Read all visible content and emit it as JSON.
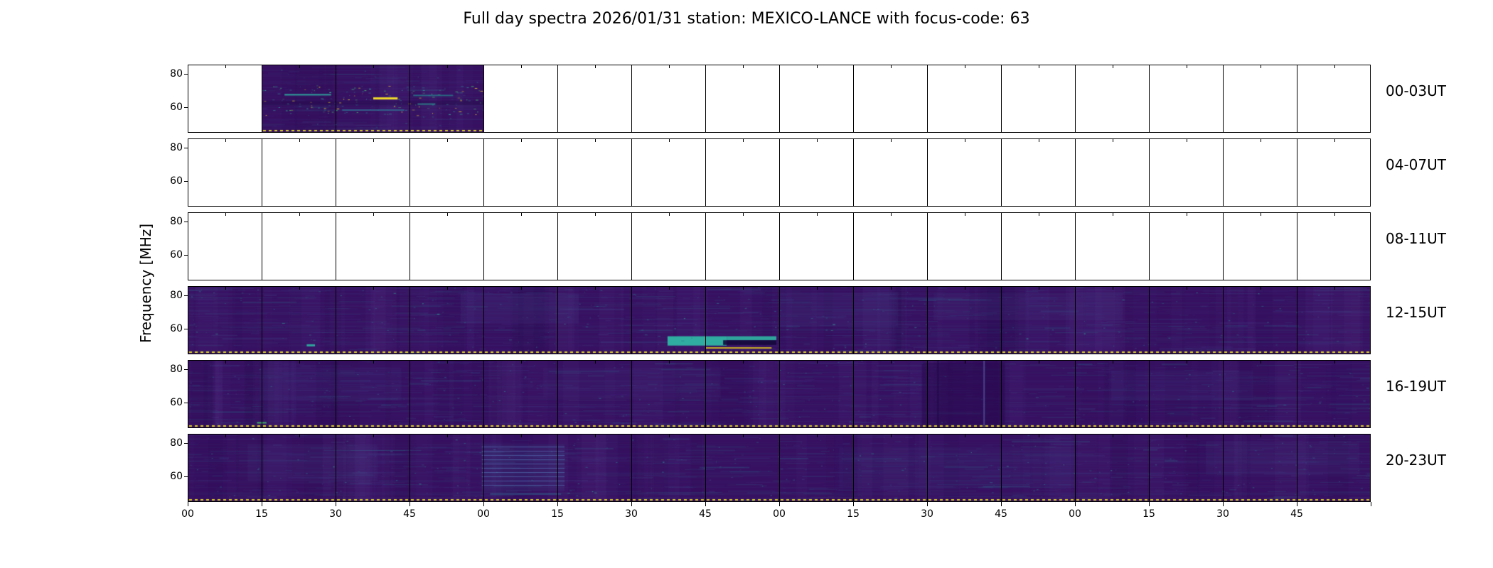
{
  "title": "Full day spectra 2026/01/31 station: MEXICO-LANCE with focus-code: 63",
  "station": "MEXICO-LANCE",
  "date": "2026/01/31",
  "focus_code": "63",
  "chart_data": {
    "type": "heatmap",
    "title": "Full day spectra 2026/01/31 station: MEXICO-LANCE with focus-code: 63",
    "ylabel": "Frequency [MHz]",
    "colormap": "viridis",
    "ylim": [
      45,
      85
    ],
    "y_ticks": [
      80,
      60
    ],
    "x_tick_labels": [
      "00",
      "15",
      "30",
      "45",
      "00",
      "15",
      "30",
      "45",
      "00",
      "15",
      "30",
      "45",
      "00",
      "15",
      "30",
      "45"
    ],
    "segments_per_row": 16,
    "minutes_per_segment": 15,
    "legend": "none",
    "grid": "off",
    "rows": [
      {
        "label": "00-03UT",
        "filled": "partial",
        "filled_segments": [
          1,
          2,
          3
        ],
        "features": [
          {
            "type": "speckles",
            "count": 160,
            "y0": 0.3,
            "y1": 0.75,
            "colors": [
              "#2fb5a3",
              "#31688e",
              "#fde725",
              "#44bf70"
            ]
          },
          {
            "type": "band",
            "x0": 0.0,
            "x1": 1.0,
            "y0": 0.53,
            "y1": 0.6,
            "color": "#200a46",
            "alpha": 0.35
          },
          {
            "type": "dash",
            "x0": 0.1,
            "x1": 0.31,
            "y": 0.43,
            "h": 2,
            "color": "#2fb5a3",
            "alpha": 0.85
          },
          {
            "type": "dash",
            "x0": 0.5,
            "x1": 0.61,
            "y": 0.48,
            "h": 3,
            "color": "#fde725",
            "alpha": 0.95
          },
          {
            "type": "dash",
            "x0": 0.36,
            "x1": 0.64,
            "y": 0.66,
            "h": 2,
            "color": "#31688e",
            "alpha": 0.85
          },
          {
            "type": "dash",
            "x0": 0.68,
            "x1": 0.86,
            "y": 0.44,
            "h": 2,
            "color": "#26828e",
            "alpha": 0.7
          },
          {
            "type": "dash",
            "x0": 0.7,
            "x1": 0.78,
            "y": 0.57,
            "h": 2,
            "color": "#2fb5a3",
            "alpha": 0.6
          }
        ]
      },
      {
        "label": "04-07UT",
        "filled": "none",
        "filled_segments": [],
        "features": []
      },
      {
        "label": "08-11UT",
        "filled": "none",
        "filled_segments": [],
        "features": []
      },
      {
        "label": "12-15UT",
        "filled": "all",
        "filled_segments": [
          0,
          1,
          2,
          3,
          4,
          5,
          6,
          7,
          8,
          9,
          10,
          11,
          12,
          13,
          14,
          15
        ],
        "features": [
          {
            "type": "band",
            "x0": 0.23,
            "x1": 0.33,
            "y0": 0.1,
            "y1": 0.55,
            "color": "#433d84",
            "alpha": 0.22
          },
          {
            "type": "band",
            "x0": 0.5,
            "x1": 0.6,
            "y0": 0.08,
            "y1": 0.6,
            "color": "#433d84",
            "alpha": 0.2
          },
          {
            "type": "band",
            "x0": 0.63,
            "x1": 0.79,
            "y0": 0.1,
            "y1": 0.5,
            "color": "#433d84",
            "alpha": 0.16
          },
          {
            "type": "band",
            "x0": 0.405,
            "x1": 0.455,
            "y0": 0.74,
            "y1": 0.88,
            "color": "#2fb5a3",
            "alpha": 0.95
          },
          {
            "type": "band",
            "x0": 0.455,
            "x1": 0.497,
            "y0": 0.74,
            "y1": 0.8,
            "color": "#2fb5a3",
            "alpha": 0.9
          },
          {
            "type": "band",
            "x0": 0.452,
            "x1": 0.497,
            "y0": 0.8,
            "y1": 0.87,
            "color": "#150a3c",
            "alpha": 0.9
          },
          {
            "type": "dash",
            "x0": 0.437,
            "x1": 0.493,
            "y": 0.905,
            "h": 2,
            "color": "#d4b923",
            "alpha": 0.95
          },
          {
            "type": "dash",
            "x0": 0.1,
            "x1": 0.107,
            "y": 0.86,
            "h": 3,
            "color": "#2fb5a3",
            "alpha": 0.9
          },
          {
            "type": "speckles",
            "count": 60,
            "y0": 0.05,
            "y1": 0.95,
            "colors": [
              "#31688e",
              "#2fb5a3"
            ]
          }
        ]
      },
      {
        "label": "16-19UT",
        "filled": "all",
        "filled_segments": [
          0,
          1,
          2,
          3,
          4,
          5,
          6,
          7,
          8,
          9,
          10,
          11,
          12,
          13,
          14,
          15
        ],
        "features": [
          {
            "type": "band",
            "x0": 0.06,
            "x1": 0.18,
            "y0": 0.1,
            "y1": 0.6,
            "color": "#433d84",
            "alpha": 0.15
          },
          {
            "type": "band",
            "x0": 0.3,
            "x1": 0.45,
            "y0": 0.1,
            "y1": 0.55,
            "color": "#433d84",
            "alpha": 0.13
          },
          {
            "type": "band",
            "x0": 0.78,
            "x1": 0.9,
            "y0": 0.15,
            "y1": 0.6,
            "color": "#433d84",
            "alpha": 0.15
          },
          {
            "type": "band",
            "x0": 0.62,
            "x1": 0.69,
            "y0": 0.03,
            "y1": 0.97,
            "color": "#2a0950",
            "alpha": 0.55
          },
          {
            "type": "vline",
            "x": 0.672,
            "w": 2,
            "color": "#6b86c8",
            "alpha": 0.45
          },
          {
            "type": "vline",
            "x": 0.633,
            "w": 2,
            "color": "#17063d",
            "alpha": 0.5
          },
          {
            "type": "dash",
            "x0": 0.058,
            "x1": 0.066,
            "y": 0.92,
            "h": 2,
            "color": "#44bf70",
            "alpha": 0.9
          },
          {
            "type": "speckles",
            "count": 55,
            "y0": 0.05,
            "y1": 0.95,
            "colors": [
              "#31688e",
              "#443983"
            ]
          }
        ]
      },
      {
        "label": "20-23UT",
        "filled": "all",
        "filled_segments": [
          0,
          1,
          2,
          3,
          4,
          5,
          6,
          7,
          8,
          9,
          10,
          11,
          12,
          13,
          14,
          15
        ],
        "features": [
          {
            "type": "band",
            "x0": 0.05,
            "x1": 0.16,
            "y0": 0.15,
            "y1": 0.7,
            "color": "#433d84",
            "alpha": 0.16
          },
          {
            "type": "band",
            "x0": 0.248,
            "x1": 0.318,
            "y0": 0.15,
            "y1": 0.85,
            "color": "#3b518b",
            "alpha": 0.18
          },
          {
            "type": "stripes",
            "x0": 0.248,
            "x1": 0.318,
            "y0": 0.18,
            "y1": 0.82,
            "lines": 10,
            "color": "#5a7fc0",
            "alpha": 0.55
          },
          {
            "type": "band",
            "x0": 0.55,
            "x1": 0.75,
            "y0": 0.2,
            "y1": 0.8,
            "color": "#3b518b",
            "alpha": 0.1
          },
          {
            "type": "band",
            "x0": 0.86,
            "x1": 0.99,
            "y0": 0.1,
            "y1": 0.6,
            "color": "#433d84",
            "alpha": 0.16
          },
          {
            "type": "dash",
            "x0": 0.255,
            "x1": 0.315,
            "y": 0.88,
            "h": 2,
            "color": "#31688e",
            "alpha": 0.6
          },
          {
            "type": "speckles",
            "count": 70,
            "y0": 0.05,
            "y1": 0.95,
            "colors": [
              "#31688e",
              "#2fb5a3",
              "#443983"
            ]
          }
        ]
      }
    ],
    "colors": {
      "background": "#371061",
      "texture": [
        "#45277d",
        "#414487",
        "#3b518b",
        "#2c728e"
      ],
      "bright": [
        "#2fb5a3",
        "#44bf70",
        "#fde725"
      ],
      "dark": "#1d0840",
      "light_smudge": "#6a4ba0",
      "dotted_line": "#ded424",
      "axis": "#000000"
    }
  }
}
